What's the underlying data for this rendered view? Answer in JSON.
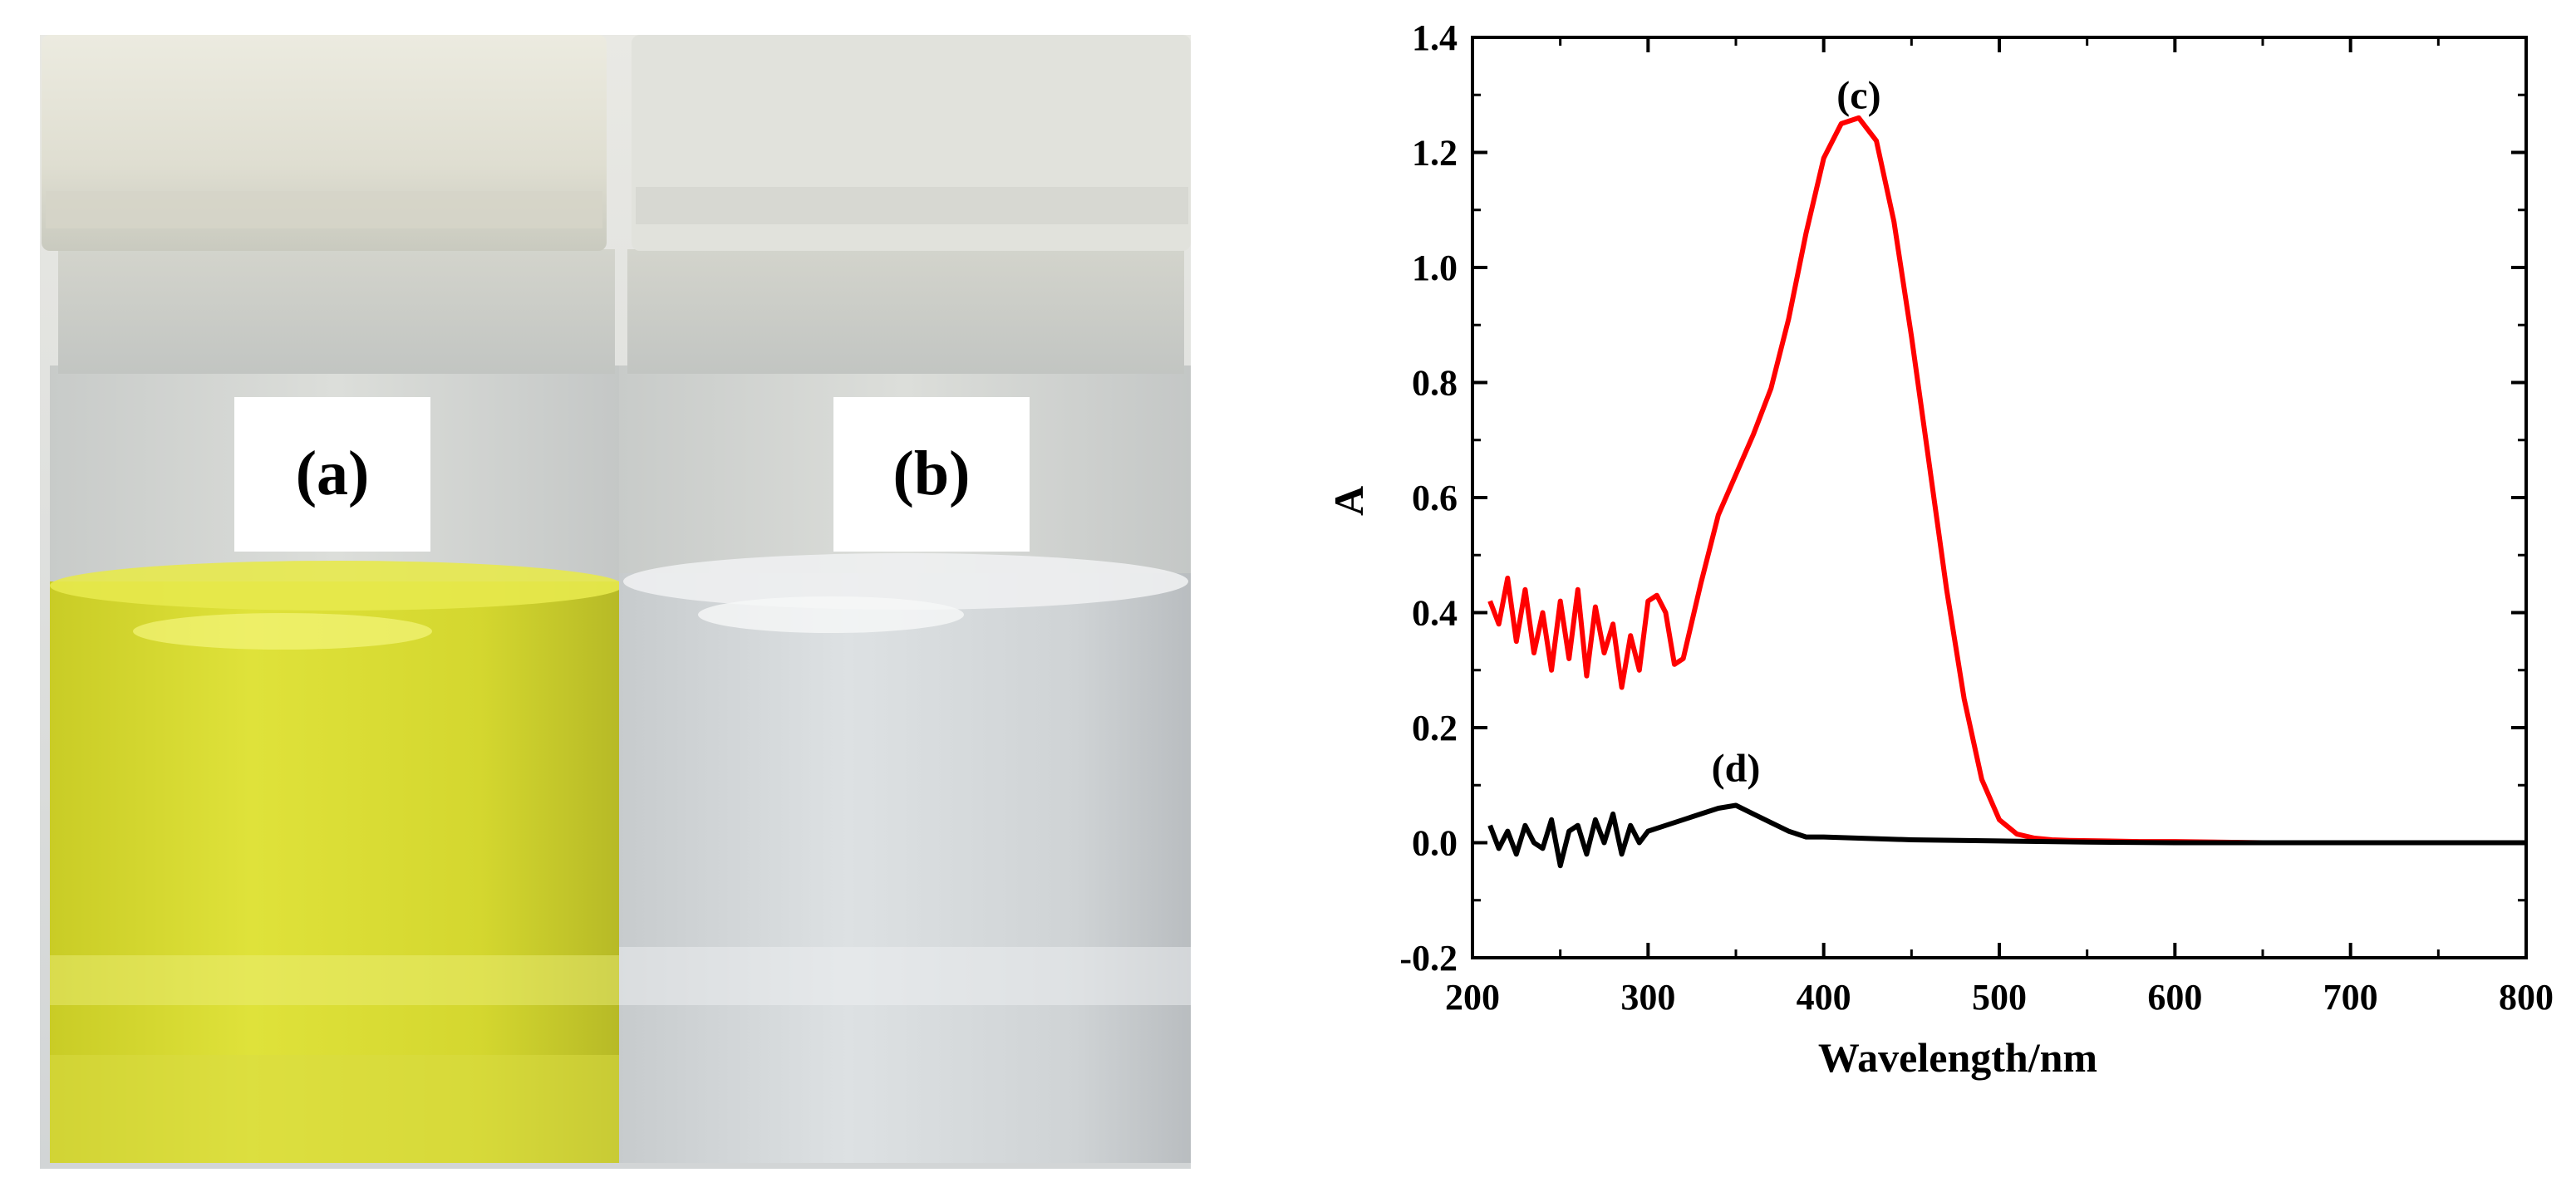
{
  "photo": {
    "labels": [
      "(a)",
      "(b)"
    ],
    "colors": {
      "yellow_solution": "#dfe23a",
      "clear_solution": "#d8dcdf",
      "cap": "#e6e4d8"
    }
  },
  "chart_data": {
    "type": "line",
    "title": "",
    "xlabel": "Wavelength/nm",
    "ylabel": "A",
    "xlim": [
      200,
      800
    ],
    "ylim": [
      -0.2,
      1.4
    ],
    "xticks": [
      200,
      300,
      400,
      500,
      600,
      700,
      800
    ],
    "yticks": [
      -0.2,
      0.0,
      0.2,
      0.4,
      0.6,
      0.8,
      1.0,
      1.2,
      1.4
    ],
    "ytick_labels": [
      "-0.2",
      "0.0",
      "0.2",
      "0.4",
      "0.6",
      "0.8",
      "1.0",
      "1.2",
      "1.4"
    ],
    "grid": false,
    "series": [
      {
        "name": "(c)",
        "color": "#ff0000",
        "x": [
          210,
          215,
          220,
          225,
          230,
          235,
          240,
          245,
          250,
          255,
          260,
          265,
          270,
          275,
          280,
          285,
          290,
          295,
          300,
          305,
          310,
          315,
          320,
          330,
          340,
          350,
          360,
          370,
          380,
          390,
          400,
          410,
          420,
          430,
          440,
          450,
          460,
          470,
          480,
          490,
          500,
          510,
          520,
          530,
          540,
          560,
          580,
          600,
          650,
          700,
          750,
          800
        ],
        "values": [
          0.42,
          0.38,
          0.46,
          0.35,
          0.44,
          0.33,
          0.4,
          0.3,
          0.42,
          0.32,
          0.44,
          0.29,
          0.41,
          0.33,
          0.38,
          0.27,
          0.36,
          0.3,
          0.42,
          0.43,
          0.4,
          0.31,
          0.32,
          0.45,
          0.57,
          0.64,
          0.71,
          0.79,
          0.91,
          1.06,
          1.19,
          1.25,
          1.26,
          1.22,
          1.08,
          0.88,
          0.66,
          0.44,
          0.25,
          0.11,
          0.04,
          0.015,
          0.008,
          0.005,
          0.004,
          0.003,
          0.002,
          0.002,
          0.0,
          0.0,
          0.0,
          0.0
        ]
      },
      {
        "name": "(d)",
        "color": "#000000",
        "x": [
          210,
          215,
          220,
          225,
          230,
          235,
          240,
          245,
          250,
          255,
          260,
          265,
          270,
          275,
          280,
          285,
          290,
          295,
          300,
          310,
          320,
          330,
          340,
          350,
          360,
          370,
          380,
          390,
          400,
          420,
          450,
          500,
          550,
          600,
          650,
          700,
          750,
          800
        ],
        "values": [
          0.03,
          -0.01,
          0.02,
          -0.02,
          0.03,
          0.0,
          -0.01,
          0.04,
          -0.04,
          0.02,
          0.03,
          -0.02,
          0.04,
          0.0,
          0.05,
          -0.02,
          0.03,
          0.0,
          0.02,
          0.03,
          0.04,
          0.05,
          0.06,
          0.065,
          0.05,
          0.035,
          0.02,
          0.01,
          0.01,
          0.008,
          0.005,
          0.003,
          0.001,
          0.0,
          0.0,
          0.0,
          0.0,
          0.0
        ]
      }
    ],
    "annotations": [
      {
        "text": "(c)",
        "x": 420,
        "y": 1.3
      },
      {
        "text": "(d)",
        "x": 350,
        "y": 0.13
      }
    ]
  }
}
